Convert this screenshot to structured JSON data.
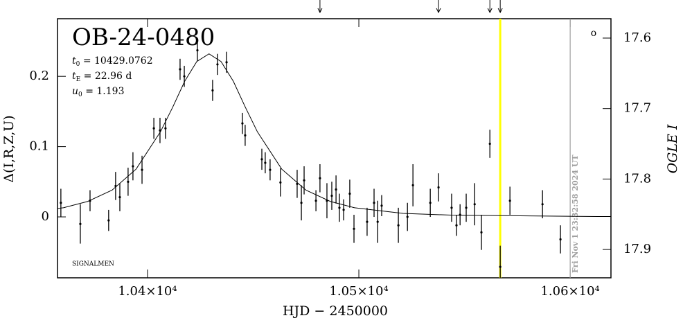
{
  "chart_data": {
    "type": "scatter",
    "title": "OB-24-0480",
    "parameters": [
      {
        "symbol": "t",
        "sub": "0",
        "text": " = 10429.0762"
      },
      {
        "symbol": "t",
        "sub": "E",
        "text": " = 22.96 d"
      },
      {
        "symbol": "u",
        "sub": "0",
        "text": " = 1.193"
      }
    ],
    "footnote": "SIGNALMEN",
    "corner_symbol": "o",
    "xlabel": "HJD − 2450000",
    "ylabel": "Δ(I,R,Z,U)",
    "y2label": "OGLE I",
    "timestamp": "Fri Nov  1 23:32:58 2024 UT",
    "xlim": [
      10357.4,
      10619.3
    ],
    "xticks": [
      {
        "value": 10400,
        "label": "1.04×10⁴"
      },
      {
        "value": 10500,
        "label": "1.05×10⁴"
      },
      {
        "value": 10600,
        "label": "1.06×10⁴"
      }
    ],
    "ylim": [
      -0.0867,
      0.282
    ],
    "yticks": [
      0,
      0.1,
      0.2
    ],
    "y2lim": [
      17.9402,
      17.5725
    ],
    "y2ticks": [
      17.6,
      17.7,
      17.8,
      17.9
    ],
    "series": [
      {
        "name": "OGLE I",
        "color": "#000000",
        "x": [
          10359.0,
          10368.2,
          10372.8,
          10381.6,
          10384.9,
          10386.9,
          10390.8,
          10393.1,
          10397.4,
          10403.0,
          10405.9,
          10408.5,
          10415.4,
          10417.4,
          10423.6,
          10430.8,
          10433.1,
          10437.4,
          10444.9,
          10446.2,
          10454.1,
          10455.7,
          10458.0,
          10462.9,
          10470.8,
          10472.8,
          10474.1,
          10479.7,
          10481.6,
          10484.9,
          10487.2,
          10489.2,
          10490.8,
          10492.8,
          10495.7,
          10497.7,
          10503.9,
          10507.2,
          10508.9,
          10510.8,
          10518.7,
          10523.0,
          10525.6,
          10533.8,
          10537.7,
          10543.9,
          10546.2,
          10547.9,
          10550.8,
          10554.8,
          10558.0,
          10562.0,
          10566.9,
          10571.5,
          10586.9,
          10595.4
        ],
        "values": [
          0.02,
          -0.01,
          0.023,
          -0.005,
          0.044,
          0.028,
          0.05,
          0.072,
          0.067,
          0.126,
          0.123,
          0.126,
          0.21,
          0.2,
          0.237,
          0.18,
          0.217,
          0.22,
          0.133,
          0.116,
          0.082,
          0.077,
          0.067,
          0.049,
          0.047,
          0.02,
          0.052,
          0.023,
          0.055,
          0.023,
          0.03,
          0.039,
          0.013,
          0.01,
          0.033,
          -0.017,
          -0.007,
          0.02,
          -0.007,
          0.016,
          -0.012,
          0.0,
          0.045,
          0.02,
          0.042,
          0.013,
          -0.012,
          0.003,
          0.013,
          0.018,
          -0.022,
          0.104,
          -0.071,
          0.023,
          0.018,
          -0.032
        ],
        "errors": [
          0.02,
          0.028,
          0.015,
          0.015,
          0.02,
          0.02,
          0.02,
          0.02,
          0.02,
          0.015,
          0.018,
          0.015,
          0.015,
          0.015,
          0.015,
          0.015,
          0.015,
          0.015,
          0.015,
          0.015,
          0.015,
          0.015,
          0.015,
          0.02,
          0.02,
          0.025,
          0.02,
          0.015,
          0.02,
          0.025,
          0.02,
          0.02,
          0.02,
          0.015,
          0.02,
          0.02,
          0.02,
          0.02,
          0.03,
          0.015,
          0.025,
          0.02,
          0.03,
          0.02,
          0.02,
          0.02,
          0.015,
          0.015,
          0.02,
          0.03,
          0.025,
          0.02,
          0.03,
          0.02,
          0.02,
          0.02
        ]
      },
      {
        "name": "model",
        "color": "#000000",
        "x": [
          10357.4,
          10360.2,
          10371.7,
          10383.2,
          10394.6,
          10406.1,
          10411.9,
          10417.6,
          10423.3,
          10429.1,
          10434.8,
          10440.6,
          10446.3,
          10452.0,
          10463.5,
          10475.0,
          10486.5,
          10498.0,
          10520.9,
          10543.9,
          10612.8,
          10619.3
        ],
        "values": [
          0.012,
          0.013,
          0.022,
          0.038,
          0.068,
          0.121,
          0.156,
          0.193,
          0.221,
          0.232,
          0.221,
          0.193,
          0.156,
          0.121,
          0.068,
          0.038,
          0.022,
          0.013,
          0.005,
          0.0025,
          0.0005,
          0.0005
        ]
      }
    ],
    "markers": [
      {
        "x": 10566.9,
        "color": "#ffff00"
      },
      {
        "x": 10600,
        "color": "#a0a0a0"
      }
    ],
    "arrows": [
      10481.6,
      10537.7,
      10562.0,
      10566.9
    ]
  }
}
